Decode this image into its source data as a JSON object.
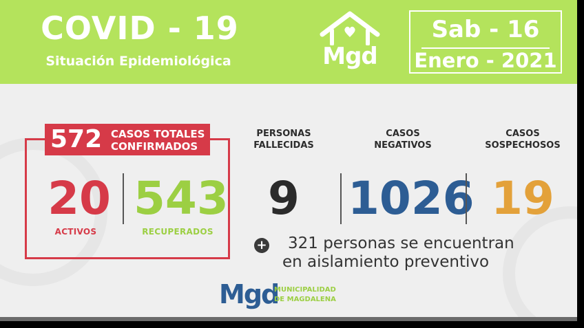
{
  "header": {
    "title": "COVID - 19",
    "subtitle": "Situación Epidemiológica",
    "logo_text": "Mgd",
    "date_line1": "Sab - 16",
    "date_line2": "Enero - 2021"
  },
  "confirmed": {
    "total": "572",
    "label_line1": "CASOS TOTALES",
    "label_line2": "CONFIRMADOS",
    "active_value": "20",
    "active_label": "ACTIVOS",
    "recovered_value": "543",
    "recovered_label": "RECUPERADOS"
  },
  "stats": [
    {
      "label_line1": "PERSONAS",
      "label_line2": "FALLECIDAS",
      "value": "9",
      "color": "#2b2b2b"
    },
    {
      "label_line1": "CASOS",
      "label_line2": "NEGATIVOS",
      "value": "1026",
      "color": "#2d5d94"
    },
    {
      "label_line1": "CASOS",
      "label_line2": "SOSPECHOSOS",
      "value": "19",
      "color": "#e3a13a"
    }
  ],
  "isolation": {
    "line1": "321 personas se encuentran",
    "line2": "en aislamiento preventivo"
  },
  "footer": {
    "logo_text": "Mgd",
    "municipality_line1": "MUNICIPALIDAD",
    "municipality_line2": "DE MAGDALENA"
  },
  "colors": {
    "header_green": "#b4e35c",
    "red": "#d63a48",
    "green": "#9ccf43",
    "blue": "#2d5d94",
    "orange": "#e3a13a"
  }
}
